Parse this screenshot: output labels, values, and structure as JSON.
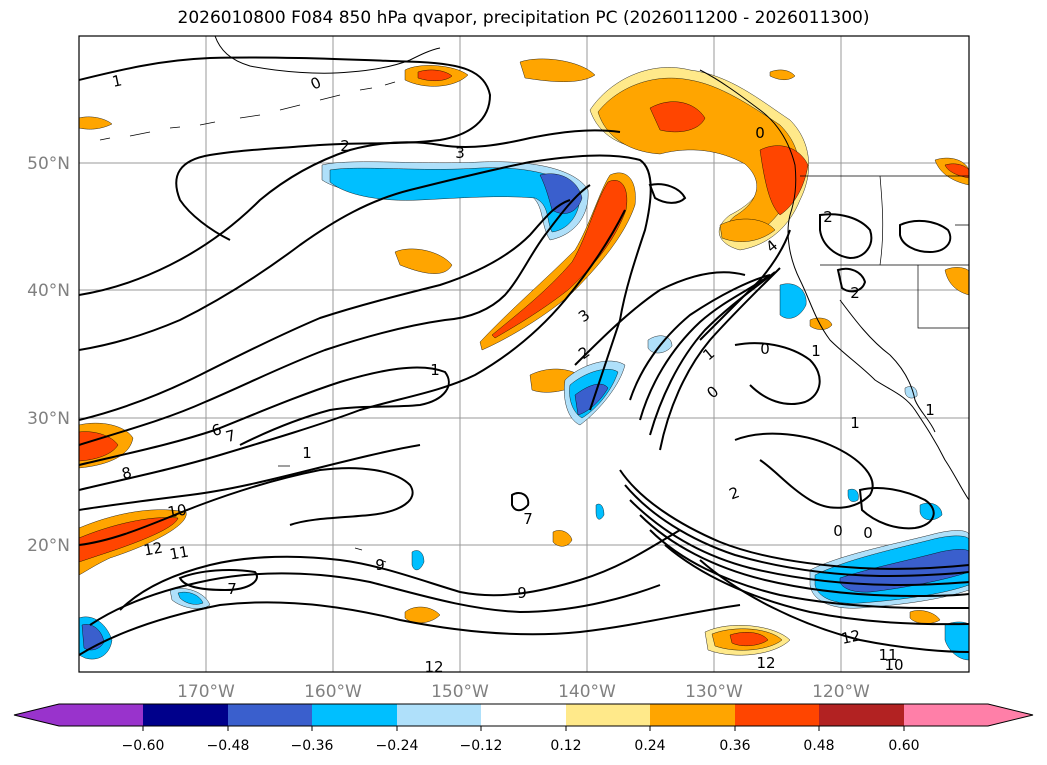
{
  "title": "2026010800 F084 850 hPa qvapor, precipitation PC (2026011200 - 2026011300)",
  "map": {
    "lat_labels": [
      "50°N",
      "40°N",
      "30°N",
      "20°N"
    ],
    "lon_labels": [
      "170°W",
      "160°W",
      "150°W",
      "140°W",
      "130°W",
      "120°W"
    ],
    "contour_labels": [
      "1",
      "0",
      "2",
      "3",
      "6",
      "7",
      "8",
      "1",
      "1",
      "2",
      "3",
      "4",
      "1",
      "0",
      "2",
      "2",
      "1",
      "0",
      "10",
      "12",
      "11",
      "9",
      "9",
      "7",
      "7",
      "2",
      "0",
      "0",
      "12",
      "12",
      "11",
      "10",
      "1",
      "1",
      "0"
    ],
    "colors": {
      "purple": "#9933cc",
      "navy": "#00008b",
      "royalblue": "#3a5fcd",
      "deepskyblue": "#00bfff",
      "lightblue": "#afe0fa",
      "lightyellow": "#ffe98a",
      "orange": "#ffa500",
      "orangered": "#ff4500",
      "firebrick": "#b22222",
      "pink": "#ff7fa8"
    }
  },
  "colorbar": {
    "tick_labels": [
      "−0.60",
      "−0.48",
      "−0.36",
      "−0.24",
      "−0.12",
      "0.12",
      "0.24",
      "0.36",
      "0.48",
      "0.60"
    ],
    "segment_colors": [
      "#9933cc",
      "#00008b",
      "#3a5fcd",
      "#00bfff",
      "#afe0fa",
      "#ffffff",
      "#ffe98a",
      "#ffa500",
      "#ff4500",
      "#b22222",
      "#ff7fa8"
    ]
  }
}
